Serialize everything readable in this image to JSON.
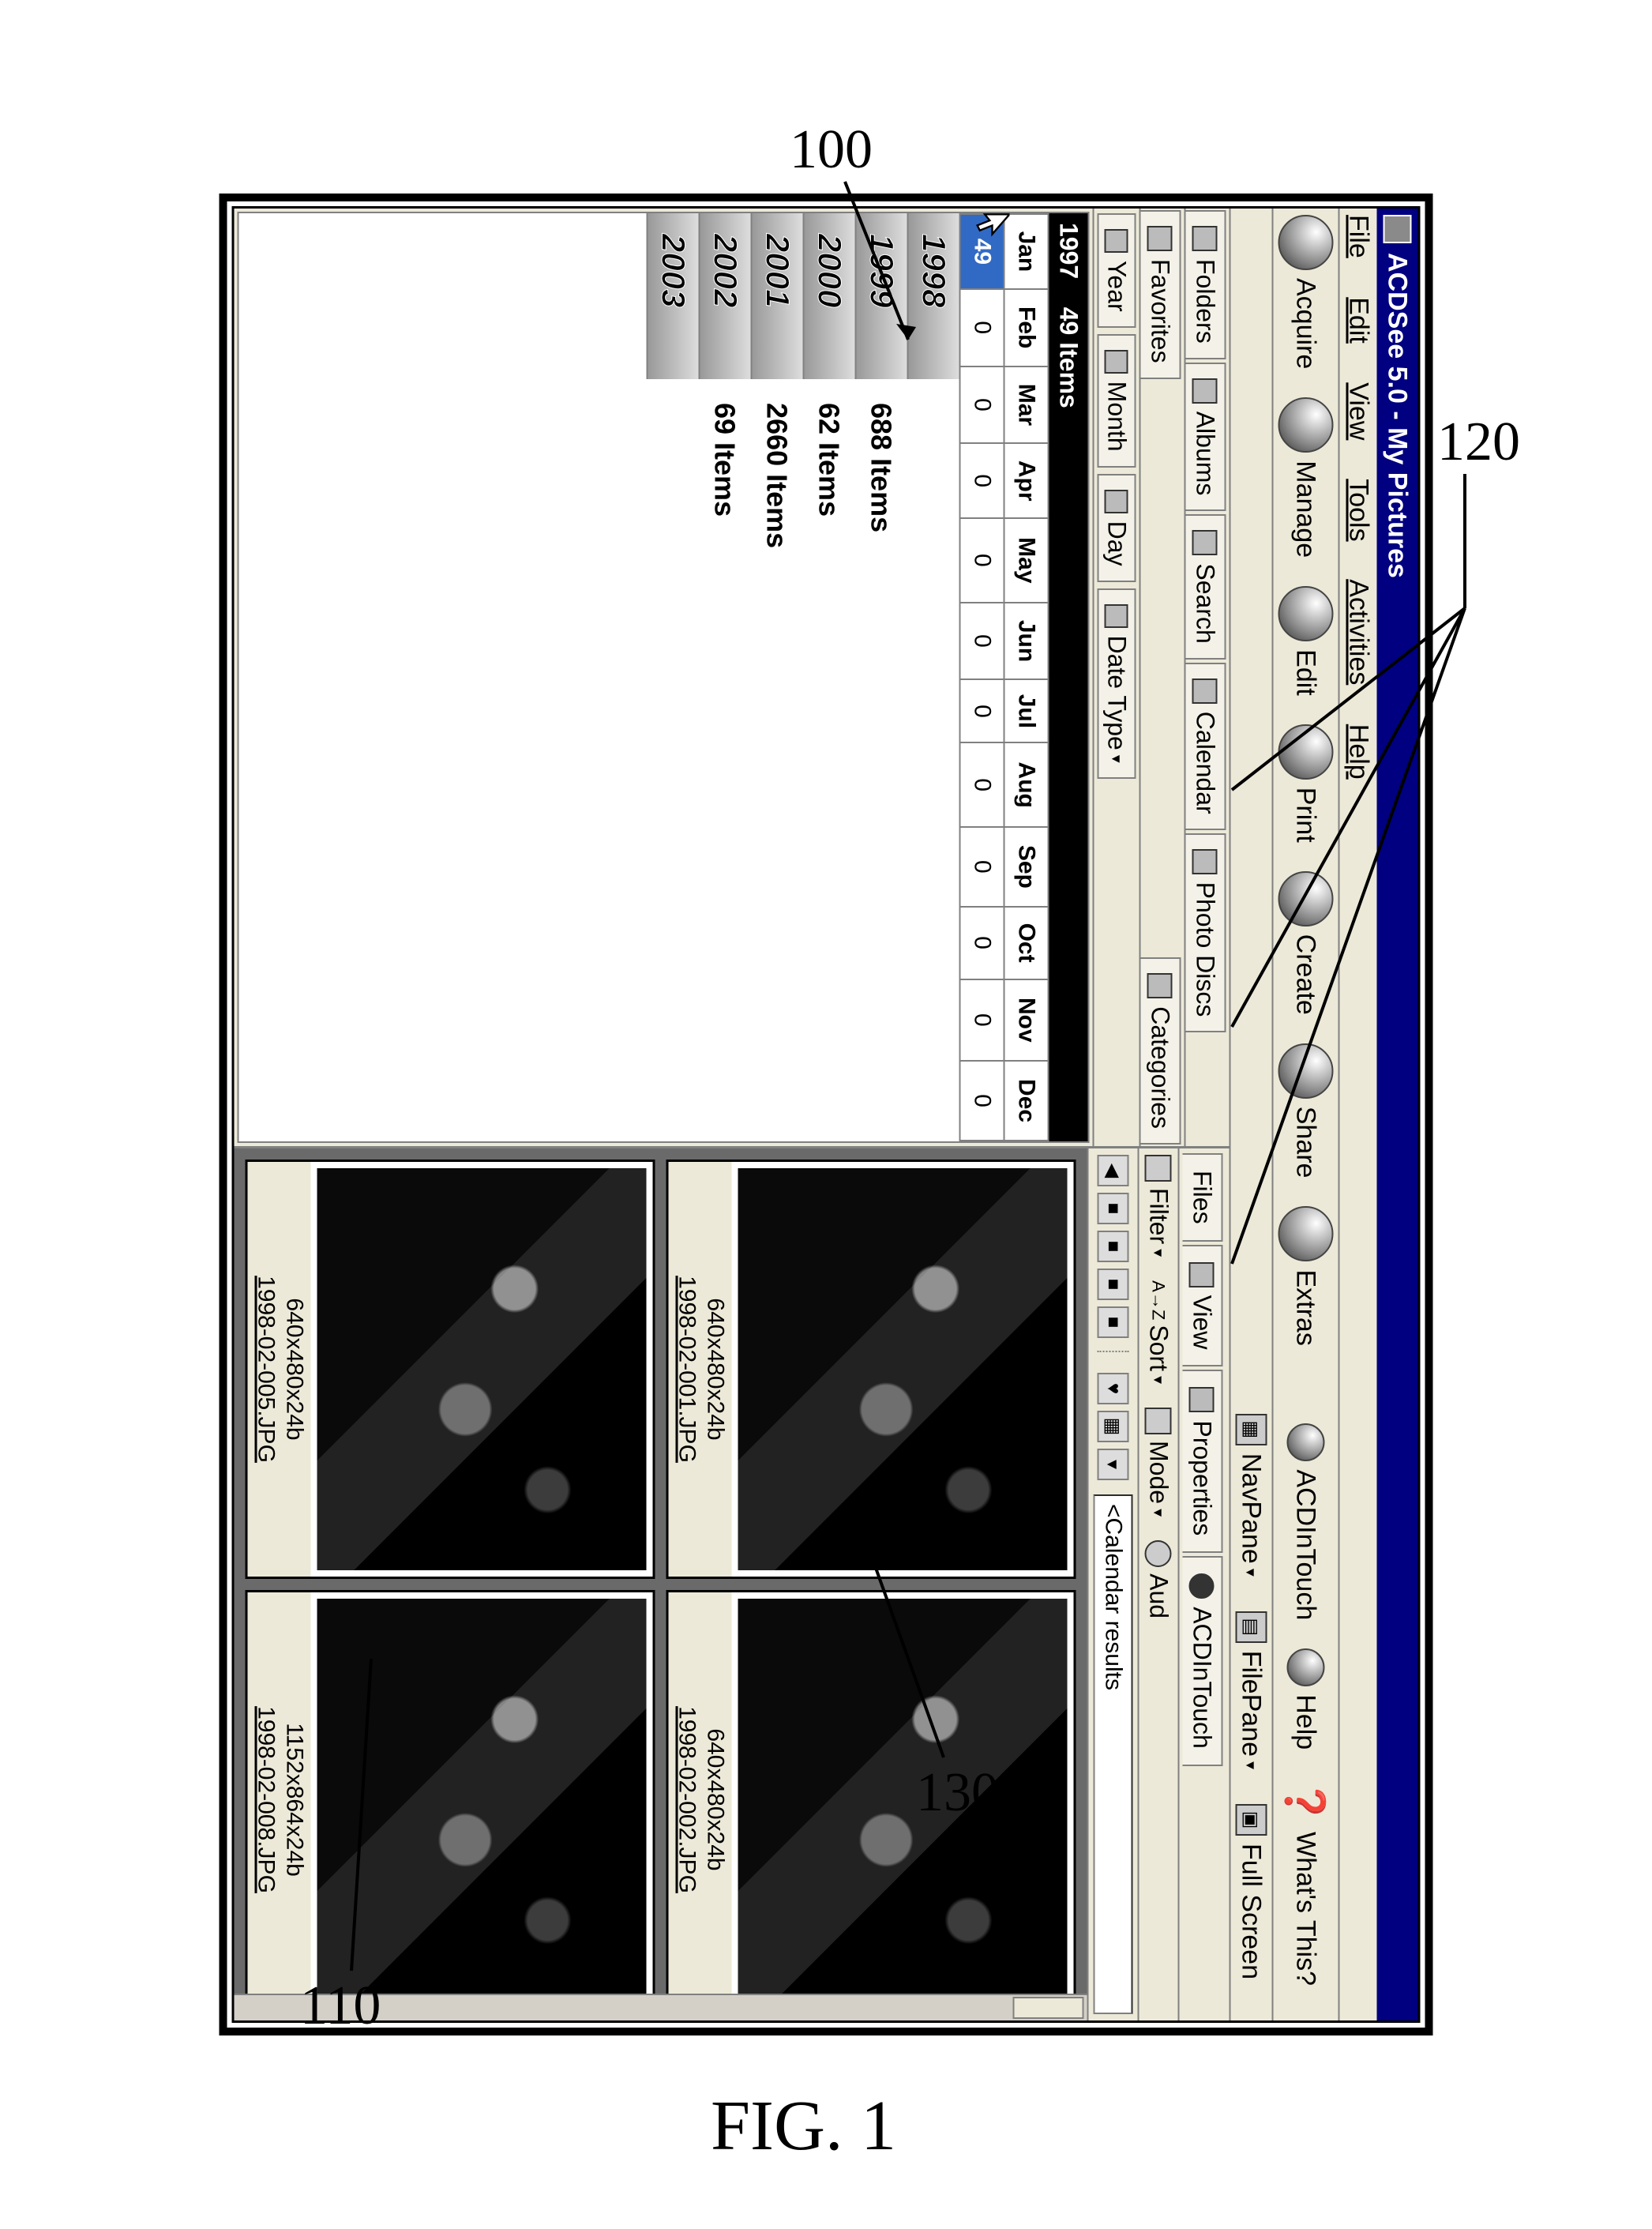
{
  "figure": {
    "label": "FIG. 1",
    "top_label": "100"
  },
  "callouts": {
    "c110": "110",
    "c120": "120",
    "c130": "130"
  },
  "title": "ACDSee 5.0 - My Pictures",
  "menu": [
    "File",
    "Edit",
    "View",
    "Tools",
    "Activities",
    "Help"
  ],
  "toolbar1": [
    "Acquire",
    "Manage",
    "Edit",
    "Print",
    "Create",
    "Share",
    "Extras"
  ],
  "toolbar1_right": {
    "acd": "ACDInTouch",
    "help": "Help",
    "whats": "What's This?"
  },
  "toolbar2": {
    "nav": "NavPane",
    "file": "FilePane",
    "full": "Full Screen"
  },
  "left_tabs": [
    "Folders",
    "Albums",
    "Search",
    "Calendar",
    "Photo Discs"
  ],
  "left_tabs2": {
    "fav": "Favorites",
    "cat": "Categories"
  },
  "subtabs": [
    "Year",
    "Month",
    "Day",
    "Date Type"
  ],
  "header_year": "1997",
  "header_items": "49 Items",
  "months": [
    "Jan",
    "Feb",
    "Mar",
    "Apr",
    "May",
    "Jun",
    "Jul",
    "Aug",
    "Sep",
    "Oct",
    "Nov",
    "Dec"
  ],
  "month_counts": [
    "49",
    "0",
    "0",
    "0",
    "0",
    "0",
    "0",
    "0",
    "0",
    "0",
    "0",
    "0"
  ],
  "cursor_col": 0,
  "years": [
    {
      "y": "1998",
      "items": ""
    },
    {
      "y": "1999",
      "items": "688 Items"
    },
    {
      "y": "2000",
      "items": "62 Items"
    },
    {
      "y": "2001",
      "items": "2660 Items"
    },
    {
      "y": "2002",
      "items": "69 Items"
    },
    {
      "y": "2003",
      "items": ""
    }
  ],
  "right_tabs": [
    "Files",
    "View",
    "Properties",
    "ACDInTouch"
  ],
  "right_tb": {
    "filter": "Filter",
    "sort": "Sort",
    "mode": "Mode",
    "aud": "Aud"
  },
  "path": "<Calendar results",
  "thumbs": [
    {
      "dim": "640x480x24b",
      "name": "1998-02-001.JPG"
    },
    {
      "dim": "640x480x24b",
      "name": "1998-02-002.JPG"
    },
    {
      "dim": "640x480x24b",
      "name": "1998-02-005.JPG"
    },
    {
      "dim": "1152x864x24b",
      "name": "1998-02-008.JPG"
    }
  ],
  "sort_glyph": "A→Z"
}
